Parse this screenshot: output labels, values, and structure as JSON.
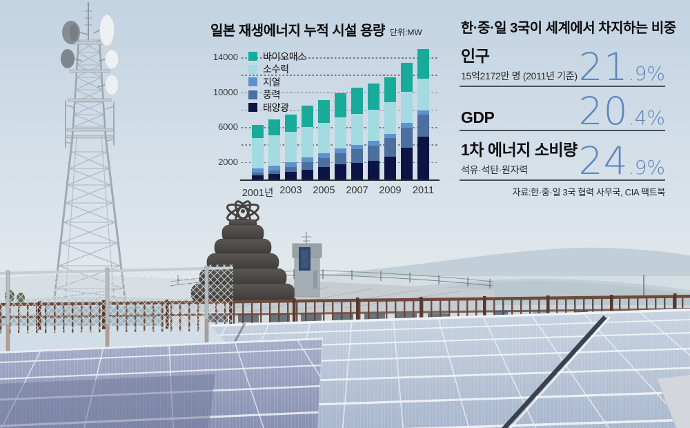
{
  "left_chart": {
    "title": "일본 재생에너지 누적 시설 용량",
    "unit": "단위:MW",
    "legend": [
      {
        "label": "바이오매스",
        "color": "#18ab99"
      },
      {
        "label": "소수력",
        "color": "#a3dbe0"
      },
      {
        "label": "지열",
        "color": "#5e92cc"
      },
      {
        "label": "풍력",
        "color": "#4b6f9e"
      },
      {
        "label": "태양광",
        "color": "#0c1446"
      }
    ],
    "chart_data": {
      "type": "bar",
      "stacked": true,
      "title": "일본 재생에너지 누적 시설 용량",
      "unit": "MW",
      "categories": [
        2001,
        2002,
        2003,
        2004,
        2005,
        2006,
        2007,
        2008,
        2009,
        2010,
        2011
      ],
      "x_tick_labels": [
        "2001년",
        "2003",
        "2005",
        "2007",
        "2009",
        "2011"
      ],
      "x_tick_indices": [
        0,
        2,
        4,
        6,
        8,
        10
      ],
      "series": [
        {
          "name": "태양광",
          "color": "#0c1446",
          "values": [
            450,
            640,
            860,
            1130,
            1420,
            1710,
            1920,
            2150,
            2630,
            3620,
            4910
          ]
        },
        {
          "name": "풍력",
          "color": "#4b6f9e",
          "values": [
            310,
            420,
            570,
            830,
            1040,
            1310,
            1530,
            1760,
            2080,
            2300,
            2500
          ]
        },
        {
          "name": "지열",
          "color": "#5e92cc",
          "values": [
            535,
            535,
            535,
            535,
            535,
            535,
            535,
            535,
            535,
            535,
            535
          ]
        },
        {
          "name": "소수력",
          "color": "#a3dbe0",
          "values": [
            3480,
            3490,
            3500,
            3510,
            3520,
            3530,
            3545,
            3560,
            3575,
            3590,
            3600
          ]
        },
        {
          "name": "바이오매스",
          "color": "#18ab99",
          "values": [
            1450,
            1770,
            1935,
            2495,
            2585,
            2815,
            2970,
            3000,
            2850,
            3355,
            3400
          ]
        }
      ],
      "y_gridline_step": 2000,
      "y_labeled_ticks": [
        2000,
        6000,
        10000,
        14000
      ],
      "ylim": [
        0,
        15500
      ],
      "grid": true,
      "legend_position": "top-left-inside"
    }
  },
  "right_panel": {
    "title": "한·중·일 3국이 세계에서 차지하는 비중",
    "accent_color": "#5e87bd",
    "rows": [
      {
        "label": "인구",
        "sublabel": "15억2172만 명 (2011년 기준)",
        "value": "21.9%",
        "value_big": "21",
        "value_small": ".9%"
      },
      {
        "label": "GDP",
        "sublabel": "",
        "value": "20.4%",
        "value_big": "20",
        "value_small": ".4%"
      },
      {
        "label": "1차 에너지 소비량",
        "sublabel": "석유·석탄·원자력",
        "value": "24.9%",
        "value_big": "24",
        "value_small": ".9%"
      }
    ],
    "source": "자료:한·중·일 3국 협력 사무국, CIA 팩트북"
  },
  "scene": {
    "sky_top": "#c3d3e2",
    "sky_mid": "#d8e2ea",
    "sky_bottom": "#e8edee",
    "mountain_far": "#b6c5d0",
    "mountain_near": "#9db1bc",
    "railing": "#6e4a3a",
    "panel_right_top": "#c9d3e1",
    "panel_right_bottom": "#a8b7cd",
    "panel_left_top": "#a6aec9",
    "panel_left_bottom": "#8991b2",
    "sculpture_dark": "#3b3937",
    "tower_steel": "#a0a8b1"
  }
}
